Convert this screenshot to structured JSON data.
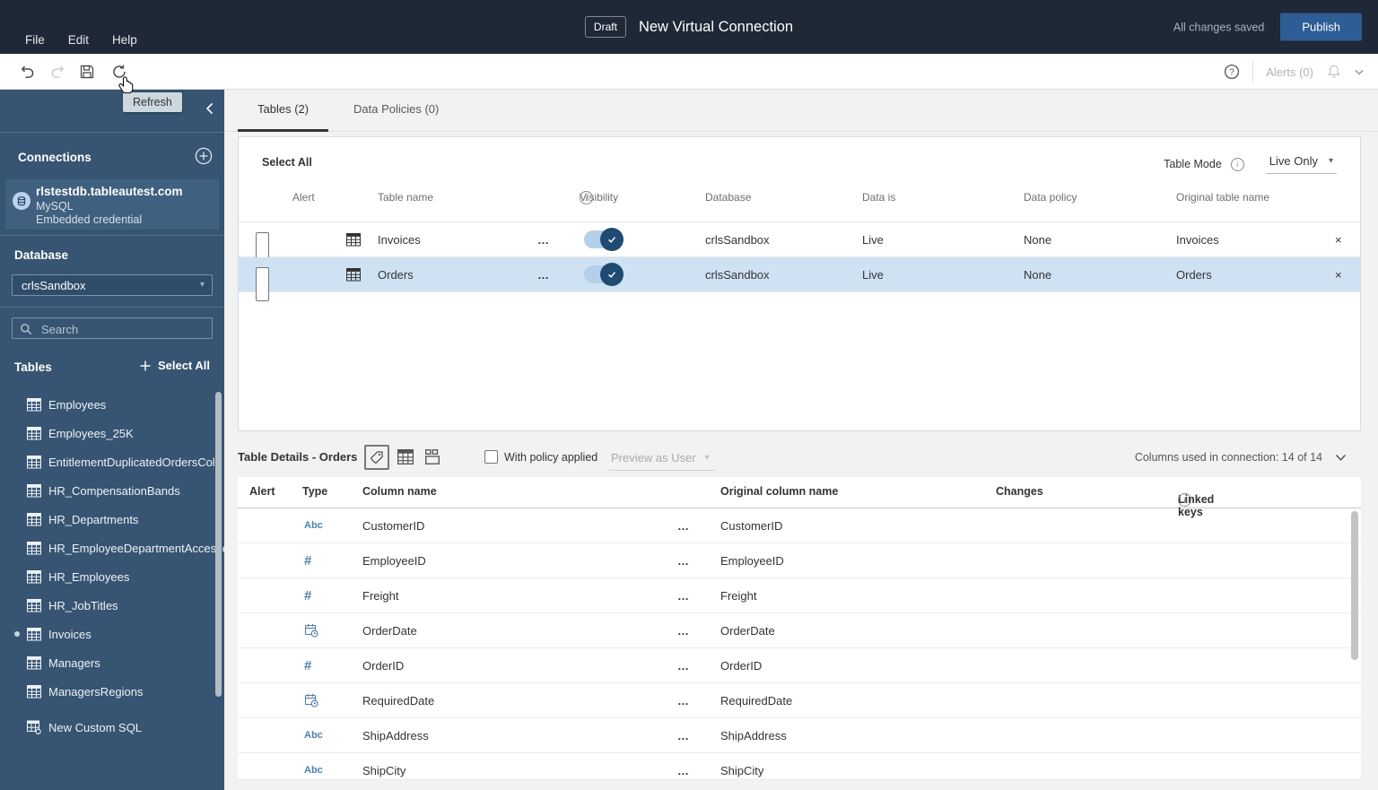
{
  "colors": {
    "topbar_bg": "#1e2836",
    "publish_blue": "#2e5c95",
    "sidebar_bg": "#375572",
    "sidebar_tile_bg": "#40607f",
    "selected_row": "#cfe2f4",
    "toggle_track": "#b3d0eb",
    "toggle_knob": "#1f4a72",
    "type_icon_blue": "#4e7fae",
    "tooltip_bg": "#ccd7e0"
  },
  "topbar": {
    "menus": [
      {
        "label": "File"
      },
      {
        "label": "Edit"
      },
      {
        "label": "Help"
      }
    ],
    "draft_badge": "Draft",
    "title": "New Virtual Connection",
    "status": "All changes saved",
    "publish_label": "Publish"
  },
  "toolbar": {
    "refresh_tooltip": "Refresh",
    "alerts_label": "Alerts (0)"
  },
  "sidebar": {
    "connections_title": "Connections",
    "connection": {
      "name": "rlstestdb.tableautest.com",
      "type": "MySQL",
      "credential": "Embedded credential"
    },
    "database_label": "Database",
    "database_value": "crlsSandbox",
    "search_placeholder": "Search",
    "tables_title": "Tables",
    "select_all_label": "Select All",
    "tables": [
      {
        "name": "Employees",
        "in_use": false
      },
      {
        "name": "Employees_25K",
        "in_use": false
      },
      {
        "name": "EntitlementDuplicatedOrdersColu",
        "in_use": false
      },
      {
        "name": "HR_CompensationBands",
        "in_use": false
      },
      {
        "name": "HR_Departments",
        "in_use": false
      },
      {
        "name": "HR_EmployeeDepartmentAccesse",
        "in_use": false
      },
      {
        "name": "HR_Employees",
        "in_use": false
      },
      {
        "name": "HR_JobTitles",
        "in_use": false
      },
      {
        "name": "Invoices",
        "in_use": true
      },
      {
        "name": "Managers",
        "in_use": false
      },
      {
        "name": "ManagersRegions",
        "in_use": false
      }
    ],
    "custom_sql_label": "New Custom SQL"
  },
  "main": {
    "tabs": [
      {
        "label": "Tables (2)",
        "active": true
      },
      {
        "label": "Data Policies (0)",
        "active": false
      }
    ],
    "select_all_label": "Select All",
    "table_mode_label": "Table Mode",
    "table_mode_value": "Live Only",
    "headers": {
      "alert": "Alert",
      "table_name": "Table name",
      "visibility": "Visibility",
      "database": "Database",
      "data_is": "Data is",
      "data_policy": "Data policy",
      "original": "Original table name"
    },
    "rows": [
      {
        "name": "Invoices",
        "database": "crlsSandbox",
        "data_is": "Live",
        "data_policy": "None",
        "original": "Invoices",
        "visible": true,
        "selected": false
      },
      {
        "name": "Orders",
        "database": "crlsSandbox",
        "data_is": "Live",
        "data_policy": "None",
        "original": "Orders",
        "visible": true,
        "selected": true
      }
    ]
  },
  "details": {
    "title": "Table Details - Orders",
    "with_policy_label": "With policy applied",
    "preview_as_label": "Preview as User",
    "columns_used_label": "Columns used in connection: 14 of 14",
    "headers": {
      "alert": "Alert",
      "type": "Type",
      "column_name": "Column name",
      "original": "Original column name",
      "changes": "Changes",
      "linked_keys": "Linked keys"
    },
    "type_glyphs": {
      "string": "Abc",
      "number": "#",
      "datetime": "calendar-clock"
    },
    "rows": [
      {
        "type": "string",
        "name": "CustomerID",
        "original": "CustomerID"
      },
      {
        "type": "number",
        "name": "EmployeeID",
        "original": "EmployeeID"
      },
      {
        "type": "number",
        "name": "Freight",
        "original": "Freight"
      },
      {
        "type": "datetime",
        "name": "OrderDate",
        "original": "OrderDate"
      },
      {
        "type": "number",
        "name": "OrderID",
        "original": "OrderID"
      },
      {
        "type": "datetime",
        "name": "RequiredDate",
        "original": "RequiredDate"
      },
      {
        "type": "string",
        "name": "ShipAddress",
        "original": "ShipAddress"
      },
      {
        "type": "string",
        "name": "ShipCity",
        "original": "ShipCity"
      }
    ]
  }
}
